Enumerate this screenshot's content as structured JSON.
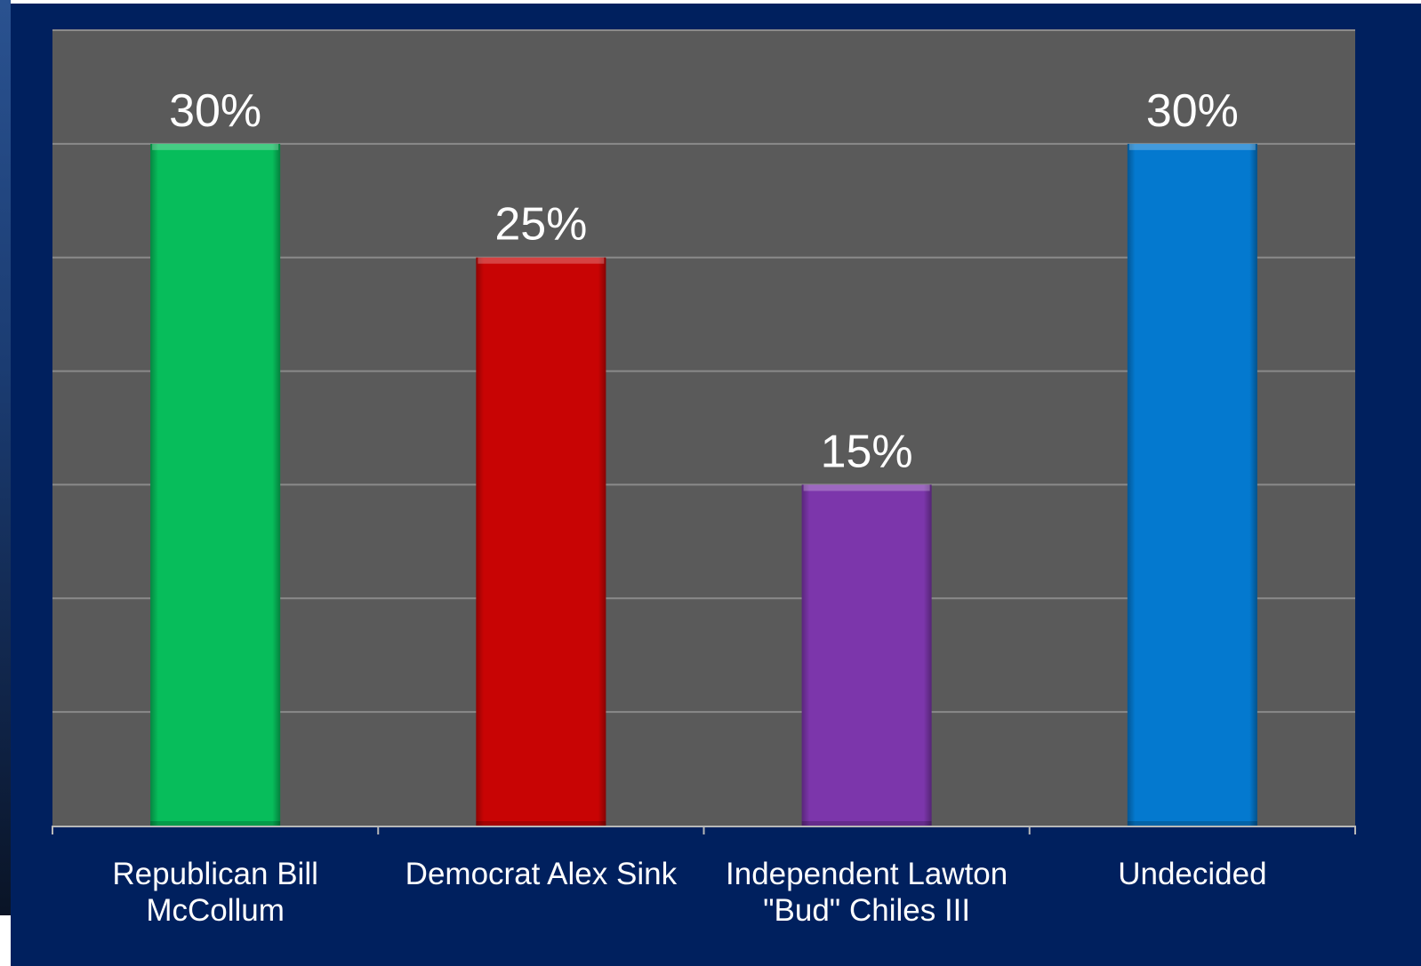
{
  "chart_data": {
    "type": "bar",
    "categories": [
      [
        "Republican Bill",
        "McCollum"
      ],
      [
        "Democrat Alex Sink"
      ],
      [
        "Independent Lawton",
        "\"Bud\" Chiles III"
      ],
      [
        "Undecided"
      ]
    ],
    "values": [
      30,
      25,
      15,
      30
    ],
    "value_labels": [
      "30%",
      "25%",
      "15%",
      "30%"
    ],
    "bar_colors": [
      "#07bd5b",
      "#c80404",
      "#7c36ab",
      "#0479cf"
    ],
    "ylim": [
      0,
      35
    ],
    "grid": true,
    "legend": "none",
    "title": "",
    "xlabel": "",
    "ylabel": ""
  },
  "colors": {
    "slide_background": "#00205e",
    "plot_background": "#5a5a5a",
    "gridline": "#8a8a8a",
    "text": "#ffffff"
  }
}
